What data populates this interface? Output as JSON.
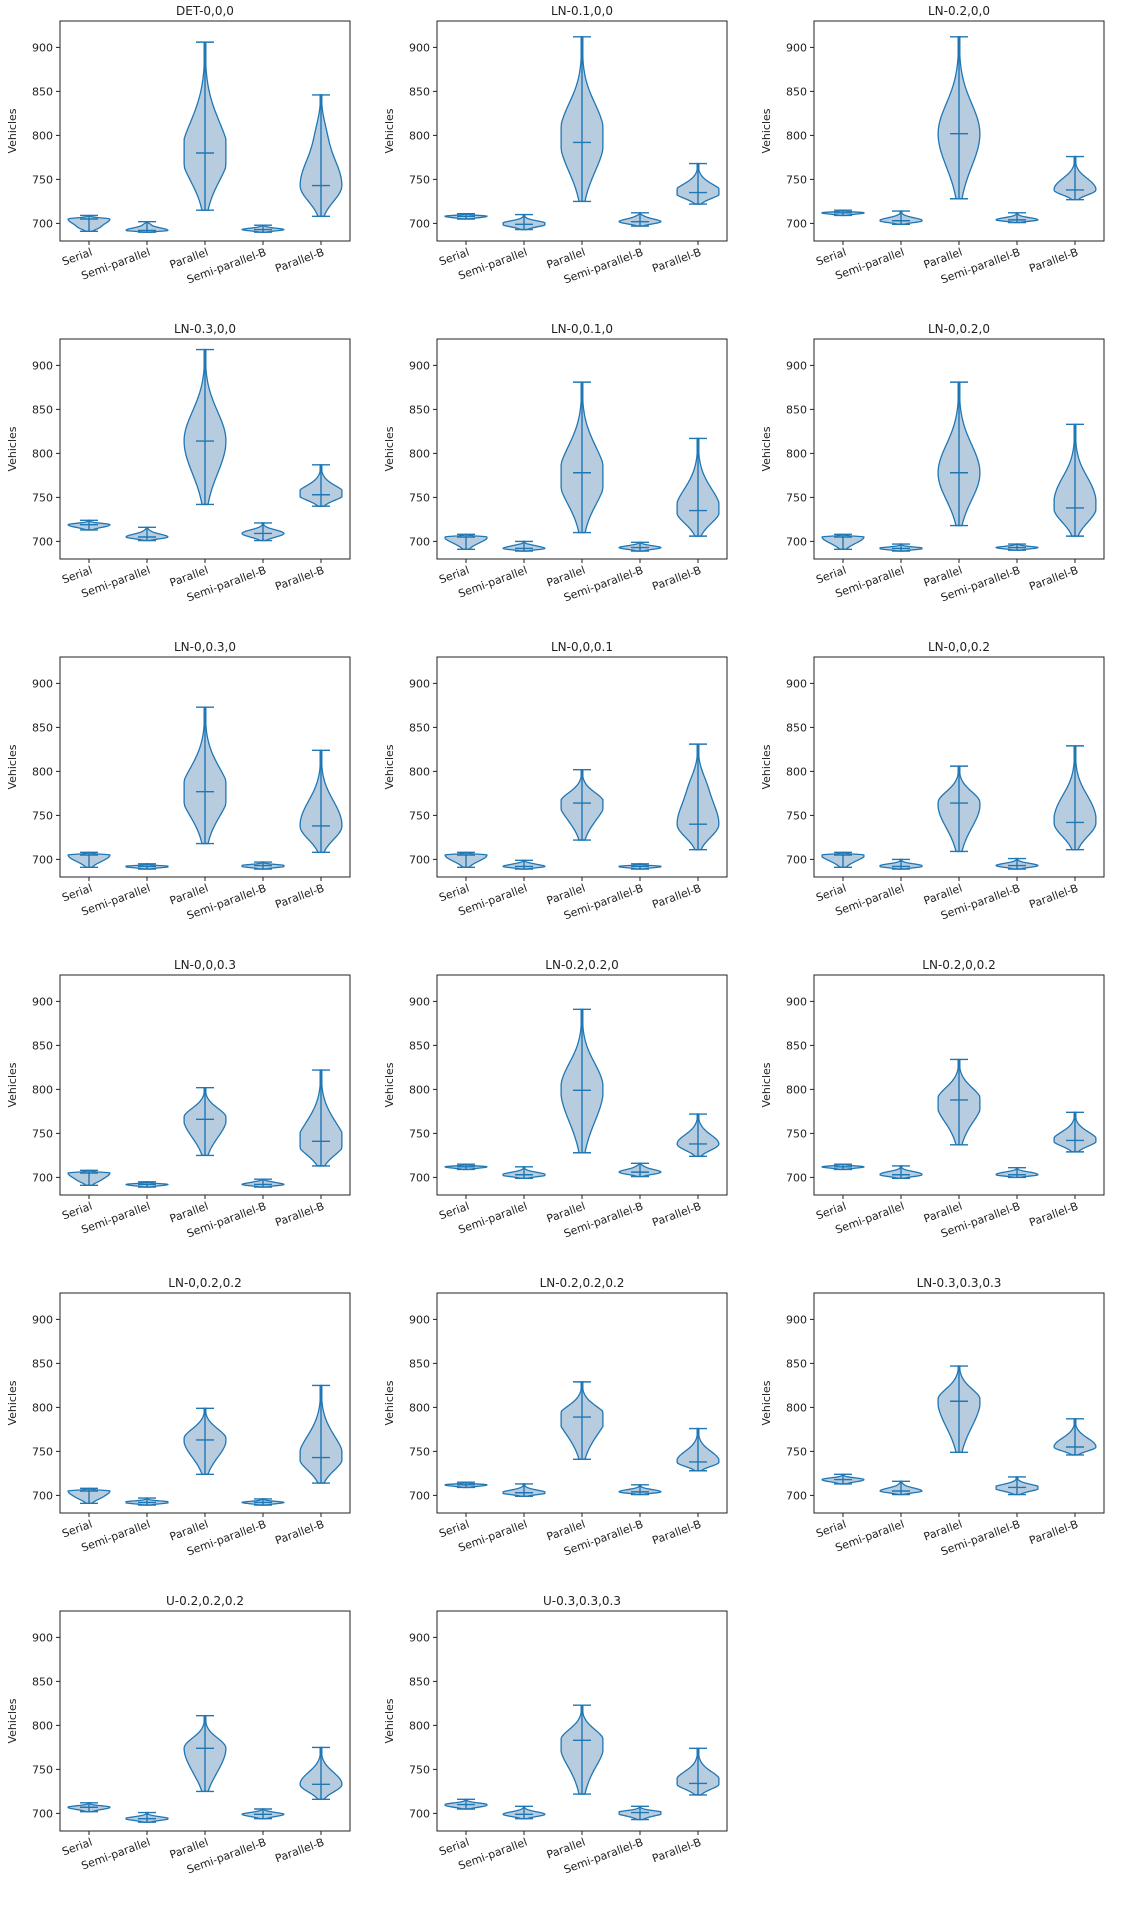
{
  "chart_data": [
    {
      "type": "violin",
      "title": "DET-0,0,0",
      "ylabel": "Vehicles",
      "categories": [
        "Serial",
        "Semi-parallel",
        "Parallel",
        "Semi-parallel-B",
        "Parallel-B"
      ],
      "ylim": [
        680,
        930
      ],
      "yticks": [
        700,
        750,
        800,
        850,
        900
      ],
      "violins": [
        {
          "min": 691,
          "max": 709,
          "median": 705
        },
        {
          "min": 690,
          "max": 702,
          "median": 692
        },
        {
          "min": 715,
          "max": 906,
          "median": 780
        },
        {
          "min": 690,
          "max": 698,
          "median": 693
        },
        {
          "min": 708,
          "max": 846,
          "median": 743
        }
      ]
    },
    {
      "type": "violin",
      "title": "LN-0.1,0,0",
      "ylabel": "Vehicles",
      "categories": [
        "Serial",
        "Semi-parallel",
        "Parallel",
        "Semi-parallel-B",
        "Parallel-B"
      ],
      "ylim": [
        680,
        930
      ],
      "yticks": [
        700,
        750,
        800,
        850,
        900
      ],
      "violins": [
        {
          "min": 705,
          "max": 711,
          "median": 708
        },
        {
          "min": 693,
          "max": 710,
          "median": 699
        },
        {
          "min": 725,
          "max": 912,
          "median": 792
        },
        {
          "min": 697,
          "max": 712,
          "median": 702
        },
        {
          "min": 722,
          "max": 768,
          "median": 735
        }
      ]
    },
    {
      "type": "violin",
      "title": "LN-0.2,0,0",
      "ylabel": "Vehicles",
      "categories": [
        "Serial",
        "Semi-parallel",
        "Parallel",
        "Semi-parallel-B",
        "Parallel-B"
      ],
      "ylim": [
        680,
        930
      ],
      "yticks": [
        700,
        750,
        800,
        850,
        900
      ],
      "violins": [
        {
          "min": 709,
          "max": 715,
          "median": 712
        },
        {
          "min": 699,
          "max": 714,
          "median": 703
        },
        {
          "min": 728,
          "max": 912,
          "median": 802
        },
        {
          "min": 701,
          "max": 712,
          "median": 704
        },
        {
          "min": 727,
          "max": 776,
          "median": 738
        }
      ]
    },
    {
      "type": "violin",
      "title": "LN-0.3,0,0",
      "ylabel": "Vehicles",
      "categories": [
        "Serial",
        "Semi-parallel",
        "Parallel",
        "Semi-parallel-B",
        "Parallel-B"
      ],
      "ylim": [
        680,
        930
      ],
      "yticks": [
        700,
        750,
        800,
        850,
        900
      ],
      "violins": [
        {
          "min": 713,
          "max": 724,
          "median": 719
        },
        {
          "min": 701,
          "max": 716,
          "median": 705
        },
        {
          "min": 742,
          "max": 918,
          "median": 814
        },
        {
          "min": 701,
          "max": 721,
          "median": 709
        },
        {
          "min": 740,
          "max": 787,
          "median": 753
        }
      ]
    },
    {
      "type": "violin",
      "title": "LN-0,0.1,0",
      "ylabel": "Vehicles",
      "categories": [
        "Serial",
        "Semi-parallel",
        "Parallel",
        "Semi-parallel-B",
        "Parallel-B"
      ],
      "ylim": [
        680,
        930
      ],
      "yticks": [
        700,
        750,
        800,
        850,
        900
      ],
      "violins": [
        {
          "min": 691,
          "max": 708,
          "median": 705
        },
        {
          "min": 689,
          "max": 700,
          "median": 692
        },
        {
          "min": 710,
          "max": 881,
          "median": 778
        },
        {
          "min": 689,
          "max": 699,
          "median": 693
        },
        {
          "min": 706,
          "max": 817,
          "median": 735
        }
      ]
    },
    {
      "type": "violin",
      "title": "LN-0,0.2,0",
      "ylabel": "Vehicles",
      "categories": [
        "Serial",
        "Semi-parallel",
        "Parallel",
        "Semi-parallel-B",
        "Parallel-B"
      ],
      "ylim": [
        680,
        930
      ],
      "yticks": [
        700,
        750,
        800,
        850,
        900
      ],
      "violins": [
        {
          "min": 691,
          "max": 708,
          "median": 705
        },
        {
          "min": 689,
          "max": 697,
          "median": 692
        },
        {
          "min": 718,
          "max": 881,
          "median": 778
        },
        {
          "min": 690,
          "max": 697,
          "median": 693
        },
        {
          "min": 706,
          "max": 833,
          "median": 738
        }
      ]
    },
    {
      "type": "violin",
      "title": "LN-0,0.3,0",
      "ylabel": "Vehicles",
      "categories": [
        "Serial",
        "Semi-parallel",
        "Parallel",
        "Semi-parallel-B",
        "Parallel-B"
      ],
      "ylim": [
        680,
        930
      ],
      "yticks": [
        700,
        750,
        800,
        850,
        900
      ],
      "violins": [
        {
          "min": 691,
          "max": 708,
          "median": 705
        },
        {
          "min": 689,
          "max": 695,
          "median": 692
        },
        {
          "min": 718,
          "max": 873,
          "median": 777
        },
        {
          "min": 689,
          "max": 697,
          "median": 693
        },
        {
          "min": 708,
          "max": 824,
          "median": 738
        }
      ]
    },
    {
      "type": "violin",
      "title": "LN-0,0,0.1",
      "ylabel": "Vehicles",
      "categories": [
        "Serial",
        "Semi-parallel",
        "Parallel",
        "Semi-parallel-B",
        "Parallel-B"
      ],
      "ylim": [
        680,
        930
      ],
      "yticks": [
        700,
        750,
        800,
        850,
        900
      ],
      "violins": [
        {
          "min": 691,
          "max": 708,
          "median": 705
        },
        {
          "min": 689,
          "max": 699,
          "median": 692
        },
        {
          "min": 722,
          "max": 802,
          "median": 764
        },
        {
          "min": 689,
          "max": 695,
          "median": 692
        },
        {
          "min": 711,
          "max": 831,
          "median": 740
        }
      ]
    },
    {
      "type": "violin",
      "title": "LN-0,0,0.2",
      "ylabel": "Vehicles",
      "categories": [
        "Serial",
        "Semi-parallel",
        "Parallel",
        "Semi-parallel-B",
        "Parallel-B"
      ],
      "ylim": [
        680,
        930
      ],
      "yticks": [
        700,
        750,
        800,
        850,
        900
      ],
      "violins": [
        {
          "min": 691,
          "max": 708,
          "median": 705
        },
        {
          "min": 689,
          "max": 700,
          "median": 692
        },
        {
          "min": 709,
          "max": 806,
          "median": 764
        },
        {
          "min": 689,
          "max": 701,
          "median": 693
        },
        {
          "min": 711,
          "max": 829,
          "median": 742
        }
      ]
    },
    {
      "type": "violin",
      "title": "LN-0,0,0.3",
      "ylabel": "Vehicles",
      "categories": [
        "Serial",
        "Semi-parallel",
        "Parallel",
        "Semi-parallel-B",
        "Parallel-B"
      ],
      "ylim": [
        680,
        930
      ],
      "yticks": [
        700,
        750,
        800,
        850,
        900
      ],
      "violins": [
        {
          "min": 691,
          "max": 708,
          "median": 705
        },
        {
          "min": 689,
          "max": 695,
          "median": 692
        },
        {
          "min": 725,
          "max": 802,
          "median": 766
        },
        {
          "min": 689,
          "max": 698,
          "median": 692
        },
        {
          "min": 713,
          "max": 822,
          "median": 741
        }
      ]
    },
    {
      "type": "violin",
      "title": "LN-0.2,0.2,0",
      "ylabel": "Vehicles",
      "categories": [
        "Serial",
        "Semi-parallel",
        "Parallel",
        "Semi-parallel-B",
        "Parallel-B"
      ],
      "ylim": [
        680,
        930
      ],
      "yticks": [
        700,
        750,
        800,
        850,
        900
      ],
      "violins": [
        {
          "min": 709,
          "max": 715,
          "median": 712
        },
        {
          "min": 699,
          "max": 712,
          "median": 703
        },
        {
          "min": 728,
          "max": 891,
          "median": 799
        },
        {
          "min": 701,
          "max": 716,
          "median": 706
        },
        {
          "min": 724,
          "max": 772,
          "median": 738
        }
      ]
    },
    {
      "type": "violin",
      "title": "LN-0.2,0,0.2",
      "ylabel": "Vehicles",
      "categories": [
        "Serial",
        "Semi-parallel",
        "Parallel",
        "Semi-parallel-B",
        "Parallel-B"
      ],
      "ylim": [
        680,
        930
      ],
      "yticks": [
        700,
        750,
        800,
        850,
        900
      ],
      "violins": [
        {
          "min": 709,
          "max": 715,
          "median": 712
        },
        {
          "min": 699,
          "max": 713,
          "median": 703
        },
        {
          "min": 737,
          "max": 834,
          "median": 788
        },
        {
          "min": 700,
          "max": 711,
          "median": 703
        },
        {
          "min": 729,
          "max": 774,
          "median": 742
        }
      ]
    },
    {
      "type": "violin",
      "title": "LN-0,0.2,0.2",
      "ylabel": "Vehicles",
      "categories": [
        "Serial",
        "Semi-parallel",
        "Parallel",
        "Semi-parallel-B",
        "Parallel-B"
      ],
      "ylim": [
        680,
        930
      ],
      "yticks": [
        700,
        750,
        800,
        850,
        900
      ],
      "violins": [
        {
          "min": 691,
          "max": 708,
          "median": 705
        },
        {
          "min": 689,
          "max": 697,
          "median": 692
        },
        {
          "min": 724,
          "max": 799,
          "median": 763
        },
        {
          "min": 689,
          "max": 696,
          "median": 692
        },
        {
          "min": 714,
          "max": 825,
          "median": 743
        }
      ]
    },
    {
      "type": "violin",
      "title": "LN-0.2,0.2,0.2",
      "ylabel": "Vehicles",
      "categories": [
        "Serial",
        "Semi-parallel",
        "Parallel",
        "Semi-parallel-B",
        "Parallel-B"
      ],
      "ylim": [
        680,
        930
      ],
      "yticks": [
        700,
        750,
        800,
        850,
        900
      ],
      "violins": [
        {
          "min": 709,
          "max": 715,
          "median": 712
        },
        {
          "min": 699,
          "max": 713,
          "median": 703
        },
        {
          "min": 741,
          "max": 829,
          "median": 789
        },
        {
          "min": 701,
          "max": 712,
          "median": 704
        },
        {
          "min": 728,
          "max": 776,
          "median": 738
        }
      ]
    },
    {
      "type": "violin",
      "title": "LN-0.3,0.3,0.3",
      "ylabel": "Vehicles",
      "categories": [
        "Serial",
        "Semi-parallel",
        "Parallel",
        "Semi-parallel-B",
        "Parallel-B"
      ],
      "ylim": [
        680,
        930
      ],
      "yticks": [
        700,
        750,
        800,
        850,
        900
      ],
      "violins": [
        {
          "min": 713,
          "max": 724,
          "median": 718
        },
        {
          "min": 701,
          "max": 716,
          "median": 705
        },
        {
          "min": 749,
          "max": 847,
          "median": 807
        },
        {
          "min": 701,
          "max": 721,
          "median": 709
        },
        {
          "min": 746,
          "max": 787,
          "median": 755
        }
      ]
    },
    {
      "type": "violin",
      "title": "U-0.2,0.2,0.2",
      "ylabel": "Vehicles",
      "categories": [
        "Serial",
        "Semi-parallel",
        "Parallel",
        "Semi-parallel-B",
        "Parallel-B"
      ],
      "ylim": [
        680,
        930
      ],
      "yticks": [
        700,
        750,
        800,
        850,
        900
      ],
      "violins": [
        {
          "min": 702,
          "max": 712,
          "median": 707
        },
        {
          "min": 690,
          "max": 701,
          "median": 694
        },
        {
          "min": 725,
          "max": 811,
          "median": 774
        },
        {
          "min": 694,
          "max": 705,
          "median": 699
        },
        {
          "min": 716,
          "max": 775,
          "median": 733
        }
      ]
    },
    {
      "type": "violin",
      "title": "U-0.3,0.3,0.3",
      "ylabel": "Vehicles",
      "categories": [
        "Serial",
        "Semi-parallel",
        "Parallel",
        "Semi-parallel-B",
        "Parallel-B"
      ],
      "ylim": [
        680,
        930
      ],
      "yticks": [
        700,
        750,
        800,
        850,
        900
      ],
      "violins": [
        {
          "min": 705,
          "max": 716,
          "median": 710
        },
        {
          "min": 694,
          "max": 708,
          "median": 699
        },
        {
          "min": 722,
          "max": 823,
          "median": 783
        },
        {
          "min": 693,
          "max": 708,
          "median": 701
        },
        {
          "min": 721,
          "max": 774,
          "median": 734
        }
      ]
    }
  ],
  "theme": {
    "violin_fill": "#b4c9de",
    "violin_line": "#1f77b4",
    "axis_color": "#222222"
  }
}
